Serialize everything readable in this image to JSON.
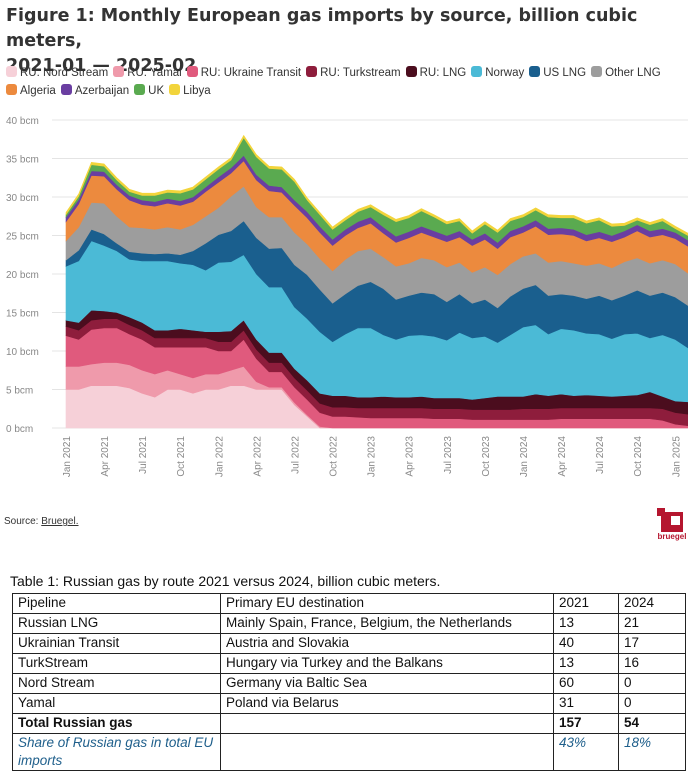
{
  "figure": {
    "title_line1": "Figure 1: Monthly European gas imports by source, billion cubic meters,",
    "title_line2": "2021-01 — 2025-02",
    "source_prefix": "Source: ",
    "source_link": "Bruegel.",
    "logo_text": "bruegel"
  },
  "chart_data": {
    "type": "area",
    "stacked": true,
    "ylim": [
      0,
      40
    ],
    "yticks": [
      0,
      5,
      10,
      15,
      20,
      25,
      30,
      35,
      40
    ],
    "ytick_labels": [
      "0 bcm",
      "5 bcm",
      "10 bcm",
      "15 bcm",
      "20 bcm",
      "25 bcm",
      "30 bcm",
      "35 bcm",
      "40 bcm"
    ],
    "grid": true,
    "legend_position": "top",
    "x_start": "2021-01",
    "x_end": "2025-02",
    "xtick_labels": [
      "Jan 2021",
      "Apr 2021",
      "Jul 2021",
      "Oct 2021",
      "Jan 2022",
      "Apr 2022",
      "Jul 2022",
      "Oct 2022",
      "Jan 2023",
      "Apr 2023",
      "Jul 2023",
      "Oct 2023",
      "Jan 2024",
      "Apr 2024",
      "Jul 2024",
      "Oct 2024",
      "Jan 2025"
    ],
    "series": [
      {
        "name": "RU: Nord Stream",
        "color": "#f6d0d8",
        "values": [
          5,
          5,
          5.5,
          5.5,
          5.5,
          5.2,
          4.5,
          4,
          5,
          5,
          4.5,
          5,
          5,
          5.5,
          5.5,
          5,
          5,
          5,
          3,
          1.5,
          0,
          0,
          0,
          0,
          0,
          0,
          0,
          0,
          0,
          0,
          0,
          0,
          0,
          0,
          0,
          0,
          0,
          0,
          0,
          0,
          0,
          0,
          0,
          0,
          0,
          0,
          0,
          0,
          0,
          0
        ]
      },
      {
        "name": "RU: Yamal",
        "color": "#ef9aab",
        "values": [
          3,
          3,
          2.8,
          3,
          3,
          3,
          3,
          3,
          2.5,
          2,
          2,
          2,
          2,
          2,
          2.5,
          1,
          0.3,
          0.3,
          0.3,
          0.2,
          0.2,
          0,
          0,
          0,
          0,
          0,
          0,
          0,
          0,
          0,
          0,
          0,
          0,
          0,
          0,
          0,
          0,
          0,
          0,
          0,
          0,
          0,
          0,
          0,
          0,
          0,
          0,
          0,
          0,
          0
        ]
      },
      {
        "name": "RU: Ukraine Transit",
        "color": "#e05a7d",
        "values": [
          4,
          3.5,
          4.5,
          4.5,
          4.5,
          4,
          4,
          3.5,
          3,
          3.5,
          4,
          3.5,
          3,
          2.5,
          3.5,
          3,
          2,
          2,
          2,
          2,
          1.8,
          1.5,
          1.5,
          1.4,
          1.3,
          1.3,
          1.3,
          1.3,
          1.3,
          1.2,
          1.2,
          1.2,
          1.1,
          1.1,
          1.1,
          1.1,
          1.1,
          1.1,
          1.1,
          1.2,
          1.2,
          1.2,
          1.2,
          1.2,
          1.2,
          1.2,
          1.2,
          1,
          0.5,
          0.3
        ]
      },
      {
        "name": "RU: Turkstream",
        "color": "#8e1d3c",
        "values": [
          1.2,
          1.2,
          1.2,
          1.2,
          1.2,
          1.2,
          1.2,
          1.2,
          1.2,
          1.2,
          1.2,
          1.2,
          1.2,
          1.2,
          1.2,
          1.2,
          1.2,
          1.2,
          1.2,
          1.2,
          1.2,
          1.2,
          1.2,
          1.2,
          1.3,
          1.3,
          1.3,
          1.3,
          1.3,
          1.3,
          1.3,
          1.3,
          1.3,
          1.3,
          1.3,
          1.3,
          1.4,
          1.4,
          1.4,
          1.4,
          1.4,
          1.4,
          1.4,
          1.4,
          1.4,
          1.4,
          1.4,
          1.5,
          1.5,
          1.5
        ]
      },
      {
        "name": "RU: LNG",
        "color": "#4b0d1e",
        "values": [
          0.8,
          1,
          1.3,
          1,
          0.8,
          1,
          1,
          1,
          1,
          1.2,
          1,
          0.8,
          1.3,
          1.4,
          1.3,
          1.3,
          1.3,
          1.3,
          1.2,
          1.3,
          1.3,
          1.5,
          1.5,
          1.4,
          1.4,
          1.5,
          1.4,
          1.4,
          1.5,
          1.4,
          1.4,
          1.4,
          1.3,
          1.5,
          1.7,
          1.7,
          1.6,
          1.9,
          1.7,
          1.8,
          1.6,
          1.7,
          1.6,
          1.5,
          1.6,
          1.7,
          2.1,
          1.6,
          1.5,
          1.6
        ]
      },
      {
        "name": "Norway",
        "color": "#4bbad6",
        "values": [
          7,
          8,
          9,
          8.5,
          8,
          7.5,
          8,
          9,
          9,
          8.5,
          8.5,
          8,
          9,
          9,
          8.5,
          8.5,
          8.5,
          8.5,
          8,
          8,
          8,
          7,
          8,
          9,
          9,
          8,
          7.5,
          8,
          8,
          8,
          7.5,
          8.5,
          8,
          8,
          7,
          8,
          9,
          9,
          8,
          8.5,
          8.5,
          8,
          8,
          7.5,
          8,
          8,
          7,
          8,
          8,
          7
        ]
      },
      {
        "name": "US LNG",
        "color": "#1a5f8e",
        "values": [
          0.8,
          1.4,
          1.5,
          1.5,
          1,
          1,
          1,
          0.9,
          1,
          1.1,
          1.8,
          3.5,
          3.6,
          4,
          4.4,
          4.7,
          5,
          5.1,
          5.5,
          5.7,
          5.5,
          5,
          5.2,
          5.5,
          6,
          6,
          5.2,
          5.2,
          5.5,
          5.5,
          5,
          5,
          4.5,
          4.8,
          4.5,
          5,
          5,
          5.2,
          5,
          4.5,
          4.5,
          4.5,
          5,
          5,
          5,
          5.6,
          5.5,
          5.5,
          5.5,
          5.5
        ]
      },
      {
        "name": "Other LNG",
        "color": "#9d9d9d",
        "values": [
          2.5,
          3,
          3.5,
          4,
          3.5,
          3.2,
          3.3,
          3.2,
          3.4,
          3.3,
          3.4,
          3.5,
          3.5,
          4.5,
          4.5,
          4,
          4.1,
          4,
          4.2,
          4,
          4,
          4.2,
          4.5,
          4.5,
          4.3,
          4.1,
          4.3,
          4.2,
          4.5,
          4.4,
          4.5,
          4.1,
          4,
          4.2,
          4.3,
          4.2,
          4.2,
          4.1,
          4.3,
          4.3,
          4.2,
          4.3,
          4.2,
          4.2,
          4.4,
          4.2,
          4.2,
          4.2,
          4.3,
          4.2
        ]
      },
      {
        "name": "Algeria",
        "color": "#ec8a3e",
        "values": [
          2.5,
          3,
          3.5,
          3.5,
          3.5,
          3.5,
          3,
          3,
          3.1,
          3.1,
          3,
          3.2,
          3.3,
          3,
          3.3,
          3.5,
          3.4,
          3.2,
          3.5,
          3.4,
          3.4,
          3.3,
          3.1,
          3,
          3.3,
          3.1,
          3.1,
          3.3,
          3.3,
          3,
          3.3,
          3.3,
          3.5,
          3.6,
          3.4,
          3.5,
          3.1,
          3.5,
          3.6,
          3.5,
          3.6,
          3.2,
          3.3,
          3.4,
          3.2,
          3.5,
          3.4,
          3.3,
          3.3,
          3.5
        ]
      },
      {
        "name": "Azerbaijan",
        "color": "#6a3ea1",
        "values": [
          0.6,
          0.6,
          0.6,
          0.6,
          0.6,
          0.6,
          0.6,
          0.6,
          0.6,
          0.6,
          0.6,
          0.6,
          0.7,
          0.7,
          0.7,
          0.7,
          0.7,
          0.7,
          0.7,
          0.8,
          0.8,
          0.8,
          0.8,
          0.8,
          0.8,
          0.8,
          0.8,
          0.8,
          0.8,
          0.8,
          0.8,
          0.8,
          0.8,
          0.8,
          0.8,
          0.8,
          0.8,
          0.8,
          0.8,
          0.8,
          0.8,
          0.8,
          0.8,
          0.8,
          0.8,
          0.8,
          0.8,
          0.8,
          0.8,
          0.8
        ]
      },
      {
        "name": "UK",
        "color": "#5aaa50",
        "values": [
          0.3,
          0.4,
          0.8,
          0.7,
          0.6,
          0.5,
          0.6,
          0.8,
          0.8,
          1,
          1,
          1,
          1,
          1,
          2.3,
          2.3,
          2.2,
          2.3,
          2.4,
          1.5,
          1.5,
          1.3,
          1.2,
          1.3,
          1.3,
          1.6,
          1.9,
          1.8,
          2,
          1.8,
          1.5,
          1.3,
          0.8,
          1.2,
          1.3,
          1.3,
          1.2,
          1.3,
          1.5,
          1.3,
          1.5,
          1.5,
          1.5,
          1.2,
          0.7,
          0.6,
          0.8,
          1,
          0.5,
          0.6
        ]
      },
      {
        "name": "Libya",
        "color": "#f2d43b",
        "values": [
          0.3,
          0.3,
          0.3,
          0.3,
          0.3,
          0.3,
          0.3,
          0.3,
          0.3,
          0.3,
          0.3,
          0.3,
          0.3,
          0.3,
          0.3,
          0.3,
          0.3,
          0.3,
          0.3,
          0.3,
          0.3,
          0.3,
          0.3,
          0.3,
          0.3,
          0.3,
          0.3,
          0.3,
          0.3,
          0.3,
          0.3,
          0.3,
          0.3,
          0.3,
          0.3,
          0.3,
          0.3,
          0.3,
          0.3,
          0.3,
          0.3,
          0.3,
          0.3,
          0.3,
          0.3,
          0.3,
          0.3,
          0.3,
          0.3,
          0.3
        ]
      }
    ]
  },
  "table": {
    "caption": "Table 1: Russian gas by route 2021 versus 2024, billion cubic meters.",
    "header": [
      "Pipeline",
      "Primary EU destination",
      "2021",
      "2024"
    ],
    "rows": [
      [
        "Russian LNG",
        "Mainly Spain, France, Belgium, the Netherlands",
        "13",
        "21"
      ],
      [
        "Ukrainian Transit",
        "Austria and Slovakia",
        "40",
        "17"
      ],
      [
        "TurkStream",
        "Hungary via Turkey and the Balkans",
        "13",
        "16"
      ],
      [
        "Nord Stream",
        "Germany via Baltic Sea",
        "60",
        "0"
      ],
      [
        "Yamal",
        "Poland via Belarus",
        "31",
        "0"
      ]
    ],
    "total": [
      "Total Russian gas",
      "",
      "157",
      "54"
    ],
    "share": [
      "Share of Russian gas in total EU imports",
      "",
      "43%",
      "18%"
    ]
  }
}
